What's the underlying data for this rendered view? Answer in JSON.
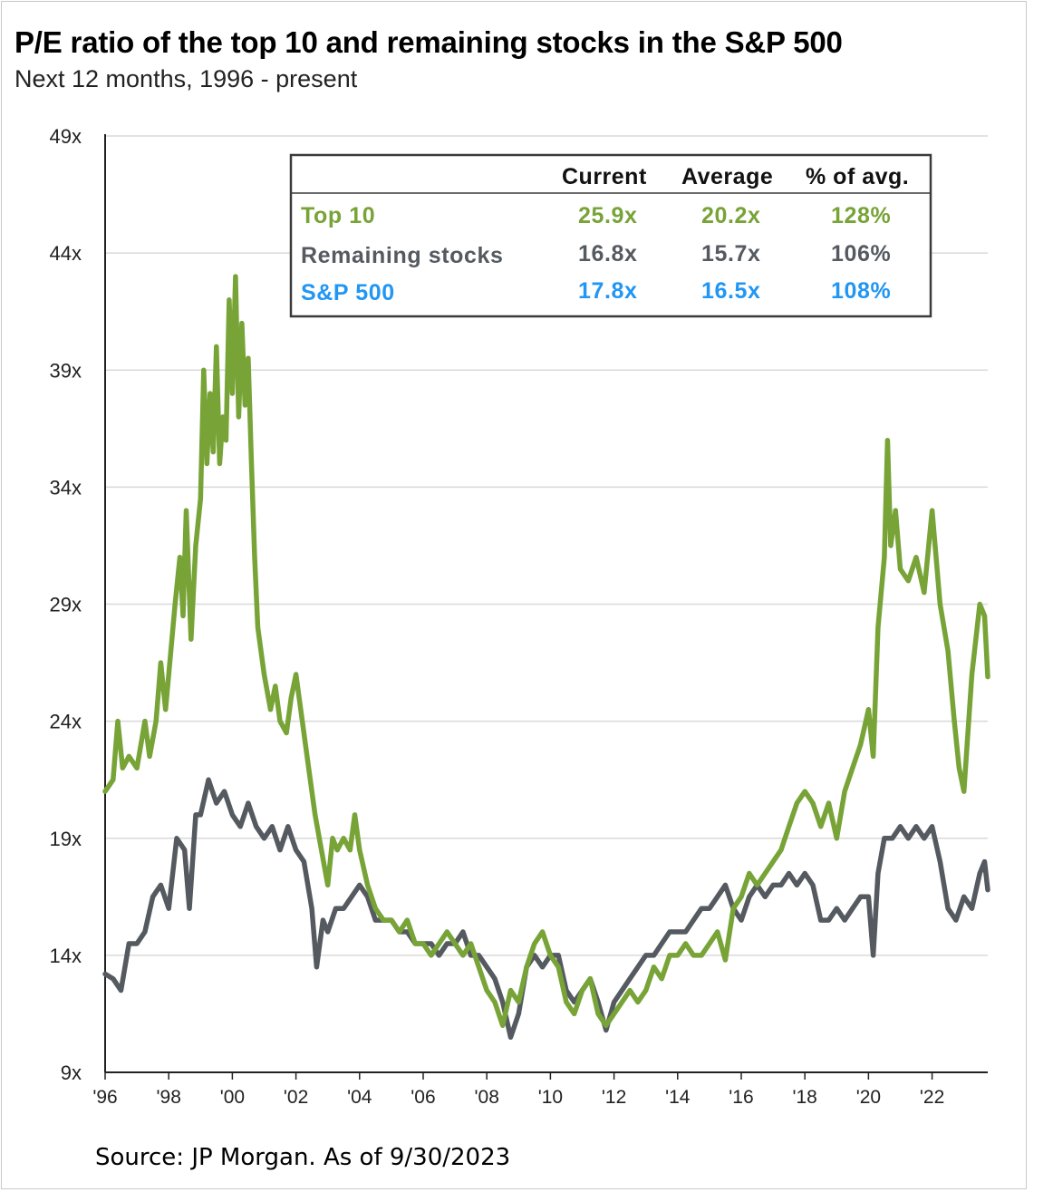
{
  "title": "P/E ratio of the top 10 and remaining stocks in the S&P 500",
  "subtitle": "Next 12 months, 1996 - present",
  "source": "Source: JP Morgan. As of 9/30/2023",
  "colors": {
    "top10": "#77a337",
    "remaining": "#555a60",
    "sp500": "#2196f3",
    "grid": "#d9d9d9",
    "axis": "#222222"
  },
  "summary_table": {
    "headers": [
      "Current",
      "Average",
      "% of avg."
    ],
    "rows": [
      {
        "label": "Top 10",
        "current": "25.9x",
        "average": "20.2x",
        "pct_of_avg": "128%",
        "color": "#77a337"
      },
      {
        "label": "Remaining stocks",
        "current": "16.8x",
        "average": "15.7x",
        "pct_of_avg": "106%",
        "color": "#555a60"
      },
      {
        "label": "S&P 500",
        "current": "17.8x",
        "average": "16.5x",
        "pct_of_avg": "108%",
        "color": "#2196f3"
      }
    ]
  },
  "chart_data": {
    "type": "line",
    "title": "P/E ratio of the top 10 and remaining stocks in the S&P 500",
    "subtitle": "Next 12 months, 1996 - present",
    "ylim": [
      9,
      49
    ],
    "xlim": [
      1996,
      2023.75
    ],
    "y_ticks": [
      9,
      14,
      19,
      24,
      29,
      34,
      39,
      44,
      49
    ],
    "y_tick_labels": [
      "9x",
      "14x",
      "19x",
      "24x",
      "29x",
      "34x",
      "39x",
      "44x",
      "49x"
    ],
    "x_ticks": [
      1996,
      1998,
      2000,
      2002,
      2004,
      2006,
      2008,
      2010,
      2012,
      2014,
      2016,
      2018,
      2020,
      2022
    ],
    "x_tick_labels": [
      "'96",
      "'98",
      "'00",
      "'02",
      "'04",
      "'06",
      "'08",
      "'10",
      "'12",
      "'14",
      "'16",
      "'18",
      "'20",
      "'22"
    ],
    "grid": true,
    "series": [
      {
        "name": "Top 10",
        "color": "#77a337",
        "points": [
          [
            1996.0,
            21.0
          ],
          [
            1996.25,
            21.5
          ],
          [
            1996.4,
            24.0
          ],
          [
            1996.55,
            22.0
          ],
          [
            1996.75,
            22.5
          ],
          [
            1997.0,
            22.0
          ],
          [
            1997.25,
            24.0
          ],
          [
            1997.4,
            22.5
          ],
          [
            1997.6,
            24.0
          ],
          [
            1997.75,
            26.5
          ],
          [
            1997.9,
            24.5
          ],
          [
            1998.0,
            26.0
          ],
          [
            1998.2,
            29.0
          ],
          [
            1998.35,
            31.0
          ],
          [
            1998.45,
            28.5
          ],
          [
            1998.55,
            33.0
          ],
          [
            1998.7,
            27.5
          ],
          [
            1998.85,
            31.5
          ],
          [
            1999.0,
            33.5
          ],
          [
            1999.1,
            39.0
          ],
          [
            1999.2,
            35.0
          ],
          [
            1999.3,
            38.0
          ],
          [
            1999.4,
            35.5
          ],
          [
            1999.5,
            40.0
          ],
          [
            1999.6,
            35.0
          ],
          [
            1999.7,
            37.0
          ],
          [
            1999.8,
            36.0
          ],
          [
            1999.9,
            42.0
          ],
          [
            2000.0,
            38.0
          ],
          [
            2000.1,
            43.0
          ],
          [
            2000.2,
            37.0
          ],
          [
            2000.3,
            41.0
          ],
          [
            2000.4,
            37.5
          ],
          [
            2000.5,
            39.5
          ],
          [
            2000.6,
            35.0
          ],
          [
            2000.7,
            31.0
          ],
          [
            2000.8,
            28.0
          ],
          [
            2001.0,
            26.0
          ],
          [
            2001.2,
            24.5
          ],
          [
            2001.35,
            25.5
          ],
          [
            2001.5,
            24.0
          ],
          [
            2001.7,
            23.5
          ],
          [
            2001.85,
            25.0
          ],
          [
            2002.0,
            26.0
          ],
          [
            2002.2,
            24.0
          ],
          [
            2002.4,
            22.0
          ],
          [
            2002.6,
            20.0
          ],
          [
            2002.8,
            18.5
          ],
          [
            2003.0,
            17.0
          ],
          [
            2003.15,
            19.0
          ],
          [
            2003.3,
            18.5
          ],
          [
            2003.5,
            19.0
          ],
          [
            2003.7,
            18.5
          ],
          [
            2003.85,
            20.0
          ],
          [
            2004.0,
            18.5
          ],
          [
            2004.25,
            17.0
          ],
          [
            2004.5,
            16.0
          ],
          [
            2004.75,
            15.5
          ],
          [
            2005.0,
            15.5
          ],
          [
            2005.25,
            15.0
          ],
          [
            2005.5,
            15.5
          ],
          [
            2005.75,
            14.5
          ],
          [
            2006.0,
            14.5
          ],
          [
            2006.25,
            14.0
          ],
          [
            2006.5,
            14.5
          ],
          [
            2006.75,
            15.0
          ],
          [
            2007.0,
            14.5
          ],
          [
            2007.25,
            14.0
          ],
          [
            2007.5,
            14.5
          ],
          [
            2007.75,
            13.5
          ],
          [
            2008.0,
            12.5
          ],
          [
            2008.25,
            12.0
          ],
          [
            2008.5,
            11.0
          ],
          [
            2008.75,
            12.5
          ],
          [
            2009.0,
            12.0
          ],
          [
            2009.25,
            13.5
          ],
          [
            2009.5,
            14.5
          ],
          [
            2009.75,
            15.0
          ],
          [
            2010.0,
            14.0
          ],
          [
            2010.25,
            13.5
          ],
          [
            2010.5,
            12.0
          ],
          [
            2010.75,
            11.5
          ],
          [
            2011.0,
            12.5
          ],
          [
            2011.25,
            13.0
          ],
          [
            2011.5,
            11.5
          ],
          [
            2011.75,
            11.0
          ],
          [
            2012.0,
            11.5
          ],
          [
            2012.25,
            12.0
          ],
          [
            2012.5,
            12.5
          ],
          [
            2012.75,
            12.0
          ],
          [
            2013.0,
            12.5
          ],
          [
            2013.25,
            13.5
          ],
          [
            2013.5,
            13.0
          ],
          [
            2013.75,
            14.0
          ],
          [
            2014.0,
            14.0
          ],
          [
            2014.25,
            14.5
          ],
          [
            2014.5,
            14.0
          ],
          [
            2014.75,
            14.0
          ],
          [
            2015.0,
            14.5
          ],
          [
            2015.25,
            15.0
          ],
          [
            2015.5,
            13.8
          ],
          [
            2015.75,
            16.0
          ],
          [
            2016.0,
            16.5
          ],
          [
            2016.25,
            17.5
          ],
          [
            2016.5,
            17.0
          ],
          [
            2016.75,
            17.5
          ],
          [
            2017.0,
            18.0
          ],
          [
            2017.25,
            18.5
          ],
          [
            2017.5,
            19.5
          ],
          [
            2017.75,
            20.5
          ],
          [
            2018.0,
            21.0
          ],
          [
            2018.25,
            20.5
          ],
          [
            2018.5,
            19.5
          ],
          [
            2018.75,
            20.5
          ],
          [
            2019.0,
            19.0
          ],
          [
            2019.25,
            21.0
          ],
          [
            2019.5,
            22.0
          ],
          [
            2019.75,
            23.0
          ],
          [
            2020.0,
            24.5
          ],
          [
            2020.15,
            22.5
          ],
          [
            2020.3,
            28.0
          ],
          [
            2020.5,
            31.0
          ],
          [
            2020.6,
            36.0
          ],
          [
            2020.7,
            31.5
          ],
          [
            2020.85,
            33.0
          ],
          [
            2021.0,
            30.5
          ],
          [
            2021.25,
            30.0
          ],
          [
            2021.5,
            31.0
          ],
          [
            2021.75,
            29.5
          ],
          [
            2022.0,
            33.0
          ],
          [
            2022.25,
            29.0
          ],
          [
            2022.5,
            27.0
          ],
          [
            2022.7,
            24.0
          ],
          [
            2022.85,
            22.0
          ],
          [
            2023.0,
            21.0
          ],
          [
            2023.25,
            26.0
          ],
          [
            2023.5,
            29.0
          ],
          [
            2023.65,
            28.5
          ],
          [
            2023.75,
            25.9
          ]
        ]
      },
      {
        "name": "Remaining stocks",
        "color": "#555a60",
        "points": [
          [
            1996.0,
            13.2
          ],
          [
            1996.25,
            13.0
          ],
          [
            1996.5,
            12.5
          ],
          [
            1996.75,
            14.5
          ],
          [
            1997.0,
            14.5
          ],
          [
            1997.25,
            15.0
          ],
          [
            1997.5,
            16.5
          ],
          [
            1997.75,
            17.0
          ],
          [
            1998.0,
            16.0
          ],
          [
            1998.25,
            19.0
          ],
          [
            1998.5,
            18.5
          ],
          [
            1998.65,
            16.0
          ],
          [
            1998.85,
            20.0
          ],
          [
            1999.0,
            20.0
          ],
          [
            1999.25,
            21.5
          ],
          [
            1999.5,
            20.5
          ],
          [
            1999.75,
            21.0
          ],
          [
            2000.0,
            20.0
          ],
          [
            2000.25,
            19.5
          ],
          [
            2000.5,
            20.5
          ],
          [
            2000.75,
            19.5
          ],
          [
            2001.0,
            19.0
          ],
          [
            2001.25,
            19.5
          ],
          [
            2001.5,
            18.5
          ],
          [
            2001.75,
            19.5
          ],
          [
            2002.0,
            18.5
          ],
          [
            2002.25,
            18.0
          ],
          [
            2002.5,
            16.0
          ],
          [
            2002.65,
            13.5
          ],
          [
            2002.85,
            15.5
          ],
          [
            2003.0,
            15.0
          ],
          [
            2003.25,
            16.0
          ],
          [
            2003.5,
            16.0
          ],
          [
            2003.75,
            16.5
          ],
          [
            2004.0,
            17.0
          ],
          [
            2004.25,
            16.5
          ],
          [
            2004.5,
            15.5
          ],
          [
            2004.75,
            15.5
          ],
          [
            2005.0,
            15.5
          ],
          [
            2005.25,
            15.0
          ],
          [
            2005.5,
            15.0
          ],
          [
            2005.75,
            14.5
          ],
          [
            2006.0,
            14.5
          ],
          [
            2006.25,
            14.5
          ],
          [
            2006.5,
            14.0
          ],
          [
            2006.75,
            14.5
          ],
          [
            2007.0,
            14.5
          ],
          [
            2007.25,
            15.0
          ],
          [
            2007.5,
            14.0
          ],
          [
            2007.75,
            14.0
          ],
          [
            2008.0,
            13.5
          ],
          [
            2008.25,
            13.0
          ],
          [
            2008.5,
            12.0
          ],
          [
            2008.75,
            10.5
          ],
          [
            2009.0,
            11.5
          ],
          [
            2009.25,
            13.5
          ],
          [
            2009.5,
            14.0
          ],
          [
            2009.75,
            13.5
          ],
          [
            2010.0,
            14.0
          ],
          [
            2010.25,
            14.0
          ],
          [
            2010.5,
            12.5
          ],
          [
            2010.75,
            12.0
          ],
          [
            2011.0,
            12.5
          ],
          [
            2011.25,
            13.0
          ],
          [
            2011.5,
            12.0
          ],
          [
            2011.75,
            10.8
          ],
          [
            2012.0,
            12.0
          ],
          [
            2012.25,
            12.5
          ],
          [
            2012.5,
            13.0
          ],
          [
            2012.75,
            13.5
          ],
          [
            2013.0,
            14.0
          ],
          [
            2013.25,
            14.0
          ],
          [
            2013.5,
            14.5
          ],
          [
            2013.75,
            15.0
          ],
          [
            2014.0,
            15.0
          ],
          [
            2014.25,
            15.0
          ],
          [
            2014.5,
            15.5
          ],
          [
            2014.75,
            16.0
          ],
          [
            2015.0,
            16.0
          ],
          [
            2015.25,
            16.5
          ],
          [
            2015.5,
            17.0
          ],
          [
            2015.75,
            16.0
          ],
          [
            2016.0,
            15.5
          ],
          [
            2016.25,
            16.5
          ],
          [
            2016.5,
            17.0
          ],
          [
            2016.75,
            16.5
          ],
          [
            2017.0,
            17.0
          ],
          [
            2017.25,
            17.0
          ],
          [
            2017.5,
            17.5
          ],
          [
            2017.75,
            17.0
          ],
          [
            2018.0,
            17.5
          ],
          [
            2018.25,
            17.0
          ],
          [
            2018.5,
            15.5
          ],
          [
            2018.75,
            15.5
          ],
          [
            2019.0,
            16.0
          ],
          [
            2019.25,
            15.5
          ],
          [
            2019.5,
            16.0
          ],
          [
            2019.75,
            16.5
          ],
          [
            2020.0,
            16.5
          ],
          [
            2020.15,
            14.0
          ],
          [
            2020.3,
            17.5
          ],
          [
            2020.5,
            19.0
          ],
          [
            2020.75,
            19.0
          ],
          [
            2021.0,
            19.5
          ],
          [
            2021.25,
            19.0
          ],
          [
            2021.5,
            19.5
          ],
          [
            2021.75,
            19.0
          ],
          [
            2022.0,
            19.5
          ],
          [
            2022.25,
            18.0
          ],
          [
            2022.5,
            16.0
          ],
          [
            2022.75,
            15.5
          ],
          [
            2023.0,
            16.5
          ],
          [
            2023.25,
            16.0
          ],
          [
            2023.5,
            17.5
          ],
          [
            2023.65,
            18.0
          ],
          [
            2023.75,
            16.8
          ]
        ]
      }
    ]
  }
}
